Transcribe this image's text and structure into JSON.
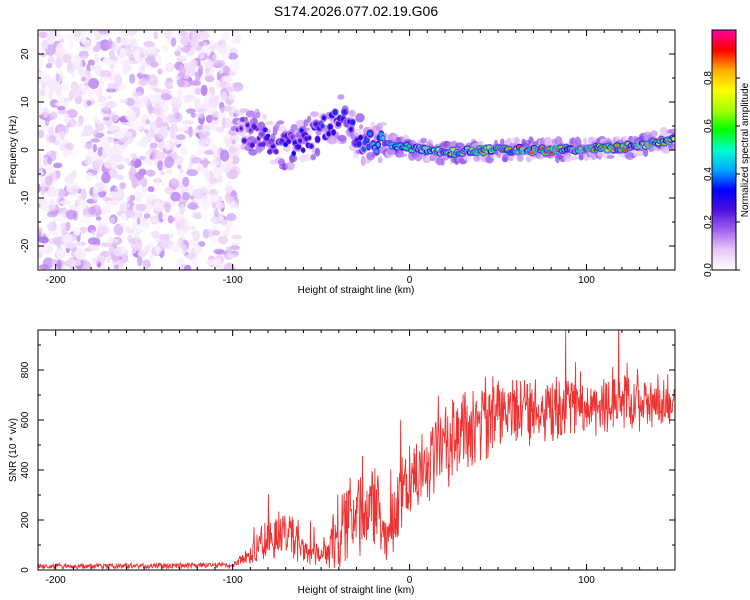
{
  "title": "S174.2026.077.02.19.G06",
  "chart_data": [
    {
      "type": "heatmap",
      "xlabel": "Height of straight line (km)",
      "ylabel": "Frequency (Hz)",
      "xlim": [
        -210,
        150
      ],
      "ylim": [
        -25,
        25
      ],
      "xticks": [
        -200,
        -100,
        0,
        100
      ],
      "yticks": [
        -20,
        -10,
        0,
        10,
        20
      ],
      "colorbar": {
        "label": "Normalized spectral amplitude",
        "range": [
          0,
          1
        ],
        "ticks": [
          "0.0",
          "0.2",
          "0.4",
          "0.6",
          "0.8"
        ],
        "colors": [
          "#ffffff",
          "#e8c8f8",
          "#a060f0",
          "#5010e0",
          "#0000ff",
          "#00aaff",
          "#00ffcc",
          "#00ff00",
          "#aaff00",
          "#ffff00",
          "#ffaa00",
          "#ff0000",
          "#ff00a0"
        ]
      },
      "noise_region": {
        "x_range": [
          -210,
          -97
        ],
        "f_range": [
          -25,
          25
        ],
        "amplitude_range": [
          0.02,
          0.15
        ]
      },
      "ridge": [
        {
          "x": -97,
          "f": 5.0
        },
        {
          "x": -90,
          "f": 3.5
        },
        {
          "x": -80,
          "f": 2.0
        },
        {
          "x": -70,
          "f": 0.5
        },
        {
          "x": -60,
          "f": 2.0
        },
        {
          "x": -45,
          "f": 5.0
        },
        {
          "x": -40,
          "f": 7.0
        },
        {
          "x": -35,
          "f": 5.0
        },
        {
          "x": -25,
          "f": 1.0
        },
        {
          "x": -20,
          "f": 2.0
        },
        {
          "x": -10,
          "f": 1.0
        },
        {
          "x": 0,
          "f": 0.5
        },
        {
          "x": 20,
          "f": -0.5
        },
        {
          "x": 50,
          "f": 0.0
        },
        {
          "x": 80,
          "f": 0.0
        },
        {
          "x": 100,
          "f": 0.3
        },
        {
          "x": 120,
          "f": 0.5
        },
        {
          "x": 140,
          "f": 1.5
        },
        {
          "x": 150,
          "f": 2.5
        }
      ],
      "ridge_amplitude": [
        {
          "x": -97,
          "a": 0.2
        },
        {
          "x": -60,
          "a": 0.3
        },
        {
          "x": -30,
          "a": 0.35
        },
        {
          "x": 0,
          "a": 0.55
        },
        {
          "x": 20,
          "a": 0.75
        },
        {
          "x": 60,
          "a": 0.85
        },
        {
          "x": 100,
          "a": 0.85
        },
        {
          "x": 150,
          "a": 0.8
        }
      ]
    },
    {
      "type": "line",
      "xlabel": "Height of straight line (km)",
      "ylabel": "SNR (10 * v/v)",
      "xlim": [
        -210,
        150
      ],
      "ylim": [
        0,
        960
      ],
      "xticks": [
        -200,
        -100,
        0,
        100
      ],
      "yticks": [
        0,
        200,
        400,
        600,
        800
      ],
      "color": "#ee3333",
      "envelope": [
        {
          "x": -210,
          "mean": 15,
          "noise": 12
        },
        {
          "x": -100,
          "mean": 18,
          "noise": 14
        },
        {
          "x": -90,
          "mean": 60,
          "noise": 50
        },
        {
          "x": -80,
          "mean": 120,
          "noise": 120
        },
        {
          "x": -70,
          "mean": 140,
          "noise": 110
        },
        {
          "x": -60,
          "mean": 80,
          "noise": 70
        },
        {
          "x": -50,
          "mean": 60,
          "noise": 50
        },
        {
          "x": -40,
          "mean": 150,
          "noise": 200
        },
        {
          "x": -30,
          "mean": 200,
          "noise": 160
        },
        {
          "x": -20,
          "mean": 250,
          "noise": 200
        },
        {
          "x": -12,
          "mean": 100,
          "noise": 120
        },
        {
          "x": -5,
          "mean": 330,
          "noise": 180
        },
        {
          "x": 10,
          "mean": 420,
          "noise": 200
        },
        {
          "x": 30,
          "mean": 550,
          "noise": 200
        },
        {
          "x": 60,
          "mean": 640,
          "noise": 180
        },
        {
          "x": 100,
          "mean": 650,
          "noise": 130
        },
        {
          "x": 150,
          "mean": 680,
          "noise": 130
        }
      ]
    }
  ]
}
